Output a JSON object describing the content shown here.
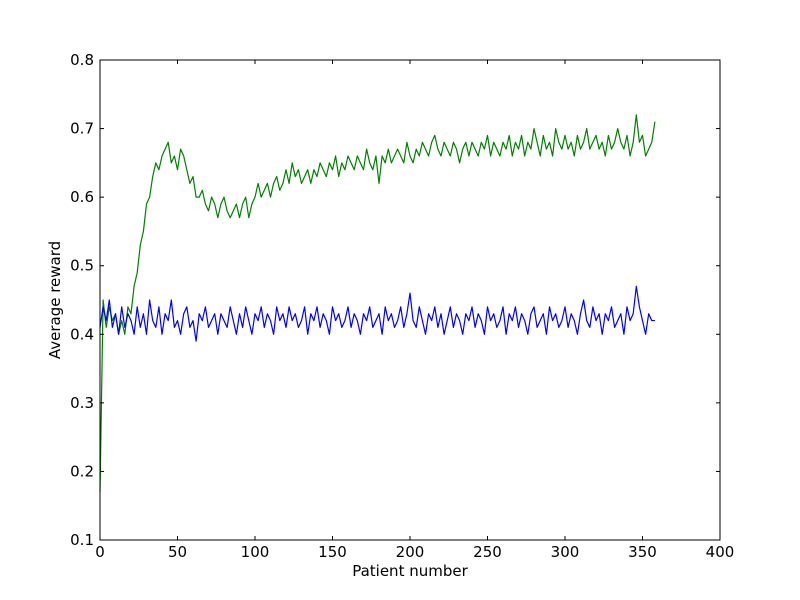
{
  "chart_data": {
    "type": "line",
    "title": "",
    "xlabel": "Patient number",
    "ylabel": "Average reward",
    "xlim": [
      0,
      400
    ],
    "ylim": [
      0.1,
      0.8
    ],
    "xticks": [
      0,
      50,
      100,
      150,
      200,
      250,
      300,
      350,
      400
    ],
    "yticks": [
      0.1,
      0.2,
      0.3,
      0.4,
      0.5,
      0.6,
      0.7,
      0.8
    ],
    "xtick_labels": [
      "0",
      "50",
      "100",
      "150",
      "200",
      "250",
      "300",
      "350",
      "400"
    ],
    "ytick_labels": [
      "0.1",
      "0.2",
      "0.3",
      "0.4",
      "0.5",
      "0.6",
      "0.7",
      "0.8"
    ],
    "grid": false,
    "legend": "none",
    "series": [
      {
        "color": "#008000",
        "x": [
          0,
          2,
          4,
          6,
          8,
          10,
          12,
          14,
          16,
          18,
          20,
          22,
          24,
          26,
          28,
          30,
          32,
          34,
          36,
          38,
          40,
          42,
          44,
          46,
          48,
          50,
          52,
          54,
          56,
          58,
          60,
          62,
          64,
          66,
          68,
          70,
          72,
          74,
          76,
          78,
          80,
          82,
          84,
          86,
          88,
          90,
          92,
          94,
          96,
          98,
          100,
          102,
          104,
          106,
          108,
          110,
          112,
          114,
          116,
          118,
          120,
          122,
          124,
          126,
          128,
          130,
          132,
          134,
          136,
          138,
          140,
          142,
          144,
          146,
          148,
          150,
          152,
          154,
          156,
          158,
          160,
          162,
          164,
          166,
          168,
          170,
          172,
          174,
          176,
          178,
          180,
          182,
          184,
          186,
          188,
          190,
          192,
          194,
          196,
          198,
          200,
          202,
          204,
          206,
          208,
          210,
          212,
          214,
          216,
          218,
          220,
          222,
          224,
          226,
          228,
          230,
          232,
          234,
          236,
          238,
          240,
          242,
          244,
          246,
          248,
          250,
          252,
          254,
          256,
          258,
          260,
          262,
          264,
          266,
          268,
          270,
          272,
          274,
          276,
          278,
          280,
          282,
          284,
          286,
          288,
          290,
          292,
          294,
          296,
          298,
          300,
          302,
          304,
          306,
          308,
          310,
          312,
          314,
          316,
          318,
          320,
          322,
          324,
          326,
          328,
          330,
          332,
          334,
          336,
          338,
          340,
          342,
          344,
          346,
          348,
          350,
          352,
          354,
          356,
          358
        ],
        "y": [
          0.17,
          0.45,
          0.41,
          0.44,
          0.42,
          0.43,
          0.4,
          0.42,
          0.4,
          0.44,
          0.43,
          0.47,
          0.49,
          0.53,
          0.55,
          0.59,
          0.6,
          0.63,
          0.65,
          0.64,
          0.66,
          0.67,
          0.68,
          0.65,
          0.66,
          0.64,
          0.67,
          0.66,
          0.64,
          0.62,
          0.63,
          0.6,
          0.6,
          0.61,
          0.59,
          0.58,
          0.6,
          0.59,
          0.57,
          0.59,
          0.6,
          0.58,
          0.57,
          0.58,
          0.59,
          0.57,
          0.59,
          0.6,
          0.57,
          0.59,
          0.6,
          0.62,
          0.6,
          0.61,
          0.62,
          0.6,
          0.62,
          0.63,
          0.61,
          0.62,
          0.64,
          0.62,
          0.65,
          0.63,
          0.64,
          0.62,
          0.63,
          0.64,
          0.62,
          0.64,
          0.63,
          0.65,
          0.64,
          0.63,
          0.65,
          0.64,
          0.66,
          0.63,
          0.65,
          0.64,
          0.66,
          0.65,
          0.64,
          0.66,
          0.65,
          0.64,
          0.67,
          0.65,
          0.64,
          0.66,
          0.62,
          0.66,
          0.65,
          0.67,
          0.65,
          0.66,
          0.67,
          0.66,
          0.65,
          0.68,
          0.66,
          0.65,
          0.67,
          0.66,
          0.68,
          0.67,
          0.66,
          0.68,
          0.69,
          0.67,
          0.66,
          0.68,
          0.67,
          0.66,
          0.68,
          0.67,
          0.65,
          0.67,
          0.68,
          0.66,
          0.68,
          0.67,
          0.66,
          0.68,
          0.67,
          0.69,
          0.66,
          0.68,
          0.67,
          0.66,
          0.68,
          0.67,
          0.69,
          0.66,
          0.68,
          0.67,
          0.69,
          0.66,
          0.68,
          0.67,
          0.7,
          0.68,
          0.66,
          0.69,
          0.67,
          0.68,
          0.66,
          0.7,
          0.68,
          0.67,
          0.69,
          0.67,
          0.68,
          0.66,
          0.69,
          0.67,
          0.68,
          0.7,
          0.67,
          0.68,
          0.69,
          0.67,
          0.68,
          0.66,
          0.69,
          0.67,
          0.68,
          0.7,
          0.68,
          0.67,
          0.69,
          0.66,
          0.68,
          0.72,
          0.68,
          0.69,
          0.66,
          0.67,
          0.68,
          0.71
        ]
      },
      {
        "color": "#0000ff",
        "x": [
          0,
          2,
          4,
          6,
          8,
          10,
          12,
          14,
          16,
          18,
          20,
          22,
          24,
          26,
          28,
          30,
          32,
          34,
          36,
          38,
          40,
          42,
          44,
          46,
          48,
          50,
          52,
          54,
          56,
          58,
          60,
          62,
          64,
          66,
          68,
          70,
          72,
          74,
          76,
          78,
          80,
          82,
          84,
          86,
          88,
          90,
          92,
          94,
          96,
          98,
          100,
          102,
          104,
          106,
          108,
          110,
          112,
          114,
          116,
          118,
          120,
          122,
          124,
          126,
          128,
          130,
          132,
          134,
          136,
          138,
          140,
          142,
          144,
          146,
          148,
          150,
          152,
          154,
          156,
          158,
          160,
          162,
          164,
          166,
          168,
          170,
          172,
          174,
          176,
          178,
          180,
          182,
          184,
          186,
          188,
          190,
          192,
          194,
          196,
          198,
          200,
          202,
          204,
          206,
          208,
          210,
          212,
          214,
          216,
          218,
          220,
          222,
          224,
          226,
          228,
          230,
          232,
          234,
          236,
          238,
          240,
          242,
          244,
          246,
          248,
          250,
          252,
          254,
          256,
          258,
          260,
          262,
          264,
          266,
          268,
          270,
          272,
          274,
          276,
          278,
          280,
          282,
          284,
          286,
          288,
          290,
          292,
          294,
          296,
          298,
          300,
          302,
          304,
          306,
          308,
          310,
          312,
          314,
          316,
          318,
          320,
          322,
          324,
          326,
          328,
          330,
          332,
          334,
          336,
          338,
          340,
          342,
          344,
          346,
          348,
          350,
          352,
          354,
          356,
          358
        ],
        "y": [
          0.41,
          0.44,
          0.42,
          0.45,
          0.41,
          0.43,
          0.4,
          0.44,
          0.41,
          0.43,
          0.42,
          0.4,
          0.44,
          0.41,
          0.43,
          0.4,
          0.45,
          0.42,
          0.41,
          0.44,
          0.4,
          0.43,
          0.42,
          0.45,
          0.41,
          0.42,
          0.4,
          0.43,
          0.44,
          0.41,
          0.42,
          0.39,
          0.43,
          0.42,
          0.44,
          0.41,
          0.42,
          0.43,
          0.4,
          0.43,
          0.42,
          0.41,
          0.44,
          0.42,
          0.4,
          0.43,
          0.41,
          0.44,
          0.42,
          0.4,
          0.43,
          0.42,
          0.44,
          0.41,
          0.43,
          0.42,
          0.4,
          0.44,
          0.42,
          0.43,
          0.41,
          0.44,
          0.42,
          0.43,
          0.41,
          0.42,
          0.44,
          0.4,
          0.43,
          0.42,
          0.44,
          0.41,
          0.43,
          0.42,
          0.4,
          0.44,
          0.42,
          0.43,
          0.41,
          0.42,
          0.44,
          0.41,
          0.43,
          0.42,
          0.4,
          0.43,
          0.42,
          0.44,
          0.41,
          0.42,
          0.43,
          0.4,
          0.44,
          0.42,
          0.43,
          0.41,
          0.42,
          0.44,
          0.41,
          0.43,
          0.46,
          0.42,
          0.41,
          0.44,
          0.42,
          0.4,
          0.43,
          0.42,
          0.44,
          0.41,
          0.43,
          0.4,
          0.42,
          0.44,
          0.41,
          0.43,
          0.42,
          0.4,
          0.43,
          0.42,
          0.44,
          0.41,
          0.43,
          0.42,
          0.4,
          0.44,
          0.42,
          0.43,
          0.41,
          0.42,
          0.44,
          0.4,
          0.43,
          0.42,
          0.44,
          0.41,
          0.43,
          0.42,
          0.4,
          0.43,
          0.44,
          0.41,
          0.42,
          0.43,
          0.4,
          0.44,
          0.42,
          0.43,
          0.41,
          0.42,
          0.44,
          0.41,
          0.43,
          0.42,
          0.4,
          0.43,
          0.45,
          0.42,
          0.41,
          0.44,
          0.42,
          0.43,
          0.4,
          0.43,
          0.42,
          0.44,
          0.41,
          0.42,
          0.43,
          0.4,
          0.44,
          0.42,
          0.43,
          0.47,
          0.44,
          0.42,
          0.4,
          0.43,
          0.42,
          0.42
        ]
      }
    ]
  }
}
